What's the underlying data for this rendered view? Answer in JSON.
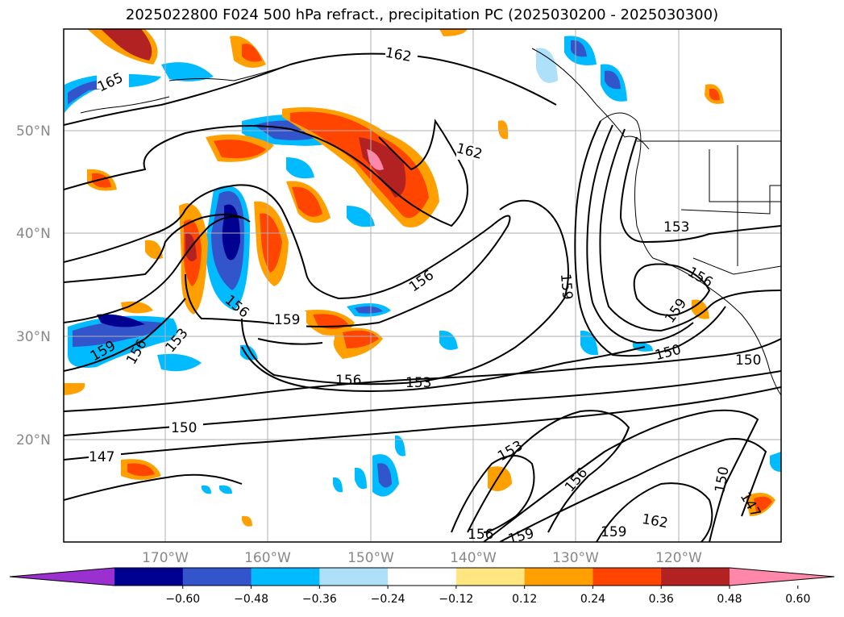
{
  "title": "2025022800 F024 500 hPa refract., precipitation PC (2025030200 - 2025030300)",
  "map": {
    "lat_labels": [
      "50°N",
      "40°N",
      "30°N",
      "20°N"
    ],
    "lon_labels": [
      "170°W",
      "160°W",
      "150°W",
      "140°W",
      "130°W",
      "120°W"
    ],
    "contour_labels": [
      "165",
      "162",
      "162",
      "159",
      "156",
      "156",
      "156",
      "153",
      "153",
      "159",
      "150",
      "147",
      "150",
      "156",
      "153",
      "156",
      "159",
      "159",
      "150",
      "153",
      "150",
      "147",
      "156",
      "159",
      "162",
      "159",
      "156"
    ]
  },
  "colorbar": {
    "ticks": [
      "−0.60",
      "−0.48",
      "−0.36",
      "−0.24",
      "−0.12",
      "0.12",
      "0.24",
      "0.36",
      "0.48",
      "0.60"
    ],
    "colors": [
      "#9b30d0",
      "#000090",
      "#3355cc",
      "#00bbff",
      "#aee0fa",
      "#ffffff",
      "#ffe680",
      "#ffa000",
      "#ff4500",
      "#b22222",
      "#ff88aa"
    ]
  },
  "colors": {
    "map_border": "#000000",
    "grid": "#b0b0b0",
    "contour": "#000000",
    "axis_text": "#888888"
  }
}
